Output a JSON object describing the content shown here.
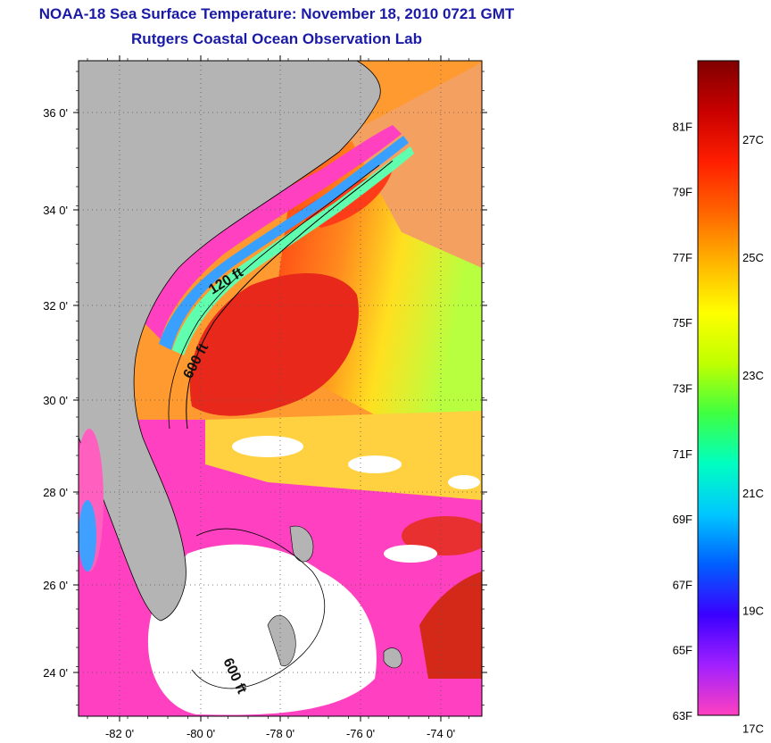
{
  "title": "NOAA-18 Sea Surface Temperature:  November 18, 2010 0721 GMT",
  "subtitle": "Rutgers Coastal Ocean Observation Lab",
  "map": {
    "lat_ticks": [
      "36 0'",
      "34 0'",
      "32 0'",
      "30 0'",
      "28 0'",
      "26 0'",
      "24 0'"
    ],
    "lon_ticks": [
      "-82 0'",
      "-80 0'",
      "-78 0'",
      "-76 0'",
      "-74 0'"
    ],
    "isobath_labels": [
      "120 ft",
      "600 ft",
      "600 ft"
    ],
    "colors": {
      "land": "#b4b4b4",
      "cloud": "#ffffff",
      "warm_core": "#e8281a",
      "gulf_stream": "#ff5a1e",
      "cold_shelf": "#ff40c0"
    }
  },
  "colorbar": {
    "fahrenheit_labels": [
      "81F",
      "79F",
      "77F",
      "75F",
      "73F",
      "71F",
      "69F",
      "67F",
      "65F",
      "63F"
    ],
    "celsius_labels": [
      "27C",
      "25C",
      "23C",
      "21C",
      "19C",
      "17C"
    ],
    "range_f": [
      63,
      83
    ],
    "colors": [
      "#ff40c0",
      "#a020ff",
      "#3a00ff",
      "#0060ff",
      "#00c8ff",
      "#00ffc0",
      "#40ff40",
      "#c0ff00",
      "#ffff00",
      "#ffb400",
      "#ff6400",
      "#ff1e00",
      "#c80000",
      "#800000"
    ]
  }
}
